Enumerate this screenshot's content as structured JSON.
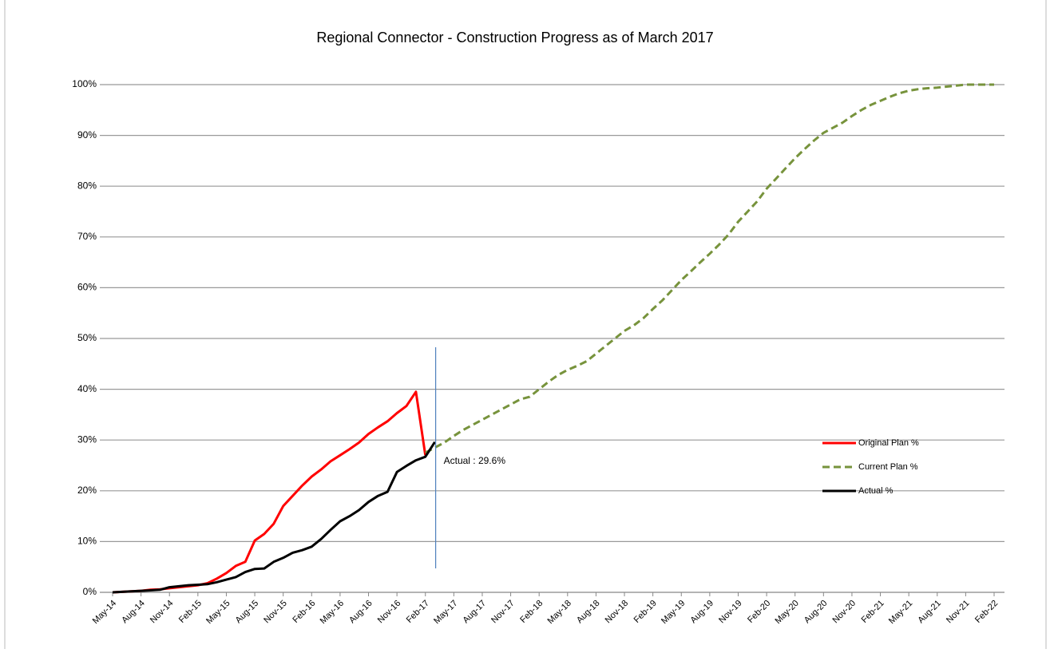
{
  "chart_data": {
    "type": "line",
    "title": "Regional Connector - Construction Progress as of March 2017",
    "categories": [
      "May-14",
      null,
      null,
      "Aug-14",
      null,
      null,
      "Nov-14",
      null,
      null,
      "Feb-15",
      null,
      null,
      "May-15",
      null,
      null,
      "Aug-15",
      null,
      null,
      "Nov-15",
      null,
      null,
      "Feb-16",
      null,
      null,
      "May-16",
      null,
      null,
      "Aug-16",
      null,
      null,
      "Nov-16",
      null,
      null,
      "Feb-17",
      null,
      null,
      "May-17",
      null,
      null,
      "Aug-17",
      null,
      null,
      "Nov-17",
      null,
      null,
      "Feb-18",
      null,
      null,
      "May-18",
      null,
      null,
      "Aug-18",
      null,
      null,
      "Nov-18",
      null,
      null,
      "Feb-19",
      null,
      null,
      "May-19",
      null,
      null,
      "Aug-19",
      null,
      null,
      "Nov-19",
      null,
      null,
      "Feb-20",
      null,
      null,
      "May-20",
      null,
      null,
      "Aug-20",
      null,
      null,
      "Nov-20",
      null,
      null,
      "Feb-21",
      null,
      null,
      "May-21",
      null,
      null,
      "Aug-21",
      null,
      null,
      "Nov-21",
      null,
      null,
      "Feb-22"
    ],
    "series": [
      {
        "name": "Original Plan %",
        "color": "#ff0000",
        "dashed": false,
        "values": [
          0,
          0.1,
          0.2,
          0.3,
          0.5,
          0.6,
          0.8,
          1.0,
          1.2,
          1.4,
          1.8,
          2.7,
          3.8,
          5.2,
          6.0,
          10.2,
          11.5,
          13.5,
          17.0,
          19.0,
          21.0,
          22.8,
          24.2,
          25.8,
          27.0,
          28.2,
          29.5,
          31.2,
          32.5,
          33.7,
          35.3,
          36.7,
          39.5,
          27.0,
          null,
          null,
          null,
          null,
          null,
          null,
          null,
          null,
          null,
          null,
          null,
          null,
          null,
          null,
          null,
          null,
          null,
          null,
          null,
          null,
          null,
          null,
          null,
          null,
          null,
          null,
          null,
          null,
          null,
          null,
          null,
          null,
          null,
          null,
          null,
          null,
          null,
          null,
          null,
          null,
          null,
          null,
          null,
          null,
          null,
          null,
          null,
          null,
          null,
          null,
          null,
          null,
          null,
          null,
          null,
          null,
          null,
          null,
          null,
          null
        ]
      },
      {
        "name": "Current Plan %",
        "color": "#77933c",
        "dashed": true,
        "values": [
          null,
          null,
          null,
          null,
          null,
          null,
          null,
          null,
          null,
          null,
          null,
          null,
          null,
          null,
          null,
          null,
          null,
          null,
          null,
          null,
          null,
          null,
          null,
          null,
          null,
          null,
          null,
          null,
          null,
          null,
          null,
          null,
          null,
          27.5,
          28.5,
          29.5,
          30.8,
          32,
          33,
          34,
          35,
          36,
          37,
          38,
          38.5,
          40,
          41.5,
          42.8,
          43.8,
          44.6,
          45.5,
          47,
          48.5,
          50,
          51.5,
          52.6,
          54,
          55.8,
          57.5,
          59.5,
          61.5,
          63.2,
          65,
          66.7,
          68.5,
          70.5,
          73,
          75,
          77,
          79.5,
          81.5,
          83.5,
          85.5,
          87.3,
          89,
          90.5,
          91.5,
          92.5,
          93.8,
          95,
          96,
          96.8,
          97.6,
          98.3,
          98.8,
          99.1,
          99.3,
          99.4,
          99.6,
          99.8,
          100,
          100,
          100,
          100
        ]
      },
      {
        "name": "Actual %",
        "color": "#000000",
        "dashed": false,
        "values": [
          0,
          0.1,
          0.2,
          0.3,
          0.4,
          0.5,
          1.0,
          1.2,
          1.4,
          1.5,
          1.6,
          2.0,
          2.5,
          3.0,
          4.0,
          4.6,
          4.7,
          6.0,
          6.8,
          7.8,
          8.3,
          9.0,
          10.5,
          12.3,
          14.0,
          15.0,
          16.2,
          17.8,
          19.0,
          19.8,
          23.7,
          24.9,
          26.0,
          26.7,
          29.6,
          null,
          null,
          null,
          null,
          null,
          null,
          null,
          null,
          null,
          null,
          null,
          null,
          null,
          null,
          null,
          null,
          null,
          null,
          null,
          null,
          null,
          null,
          null,
          null,
          null,
          null,
          null,
          null,
          null,
          null,
          null,
          null,
          null,
          null,
          null,
          null,
          null,
          null,
          null,
          null,
          null,
          null,
          null,
          null,
          null,
          null,
          null,
          null,
          null,
          null,
          null,
          null,
          null,
          null,
          null,
          null,
          null,
          null,
          null
        ]
      }
    ],
    "ylim": [
      0,
      100
    ],
    "yticks": [
      {
        "value": 0,
        "label": "0%"
      },
      {
        "value": 10,
        "label": "10%"
      },
      {
        "value": 20,
        "label": "20%"
      },
      {
        "value": 30,
        "label": "30%"
      },
      {
        "value": 40,
        "label": "40%"
      },
      {
        "value": 50,
        "label": "50%"
      },
      {
        "value": 60,
        "label": "60%"
      },
      {
        "value": 70,
        "label": "70%"
      },
      {
        "value": 80,
        "label": "80%"
      },
      {
        "value": 90,
        "label": "90%"
      },
      {
        "value": 100,
        "label": "100%"
      }
    ],
    "grid": true,
    "legend": "right",
    "annotation": "Actual : 29.6%"
  }
}
